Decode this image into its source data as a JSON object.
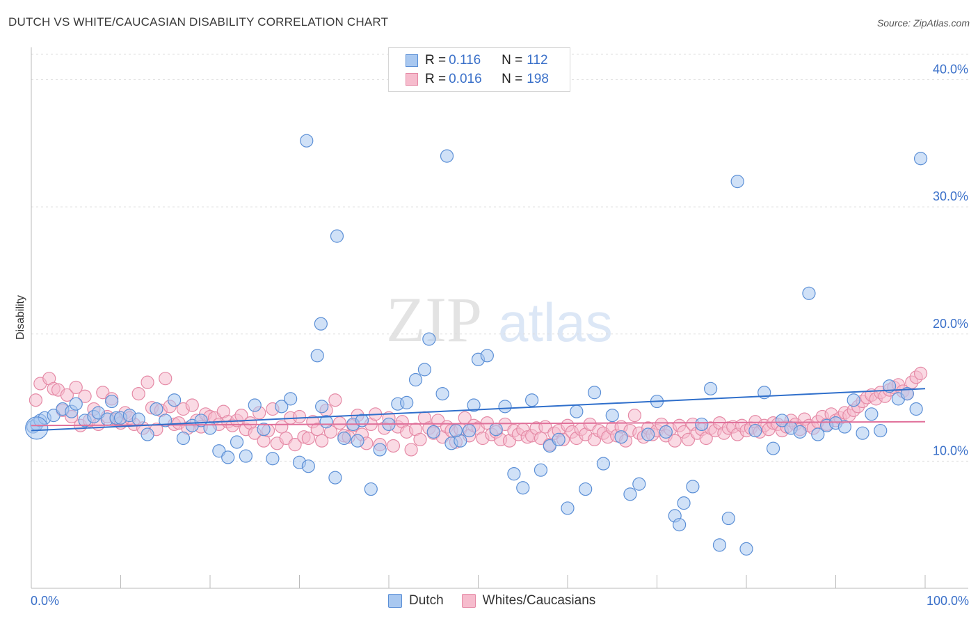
{
  "title": "DUTCH VS WHITE/CAUCASIAN DISABILITY CORRELATION CHART",
  "source": "Source: ZipAtlas.com",
  "watermark": {
    "zip": "ZIP",
    "atlas": "atlas"
  },
  "legend": {
    "rows": [
      {
        "r_label": "R = ",
        "r_value": "0.116",
        "n_label": "N = ",
        "n_value": "112"
      },
      {
        "r_label": "R = ",
        "r_value": "0.016",
        "n_label": "N = ",
        "n_value": "198"
      }
    ]
  },
  "colors": {
    "dutch_fill": "#a9c8f0",
    "dutch_stroke": "#5b8fd6",
    "dutch_line": "#2f6fcb",
    "white_fill": "#f6bccd",
    "white_stroke": "#e58aa6",
    "white_line": "#e0709a",
    "axis_label": "#3a70c9",
    "grid": "#dddddd"
  },
  "chart_data": {
    "type": "scatter",
    "title": "DUTCH VS WHITE/CAUCASIAN DISABILITY CORRELATION CHART",
    "xlabel": "",
    "ylabel": "Disability",
    "xlim": [
      0,
      100
    ],
    "ylim": [
      0,
      42
    ],
    "x_tick_labels": [
      "0.0%",
      "100.0%"
    ],
    "y_ticks": [
      10,
      20,
      30,
      40
    ],
    "y_tick_labels": [
      "10.0%",
      "20.0%",
      "30.0%",
      "40.0%"
    ],
    "series": [
      {
        "name": "Dutch",
        "trend": [
          [
            0,
            12.4
          ],
          [
            100,
            15.7
          ]
        ],
        "points": [
          [
            0.2,
            12.7
          ],
          [
            0.6,
            12.9
          ],
          [
            1,
            13.2
          ],
          [
            1.5,
            13.4
          ],
          [
            2.5,
            13.6
          ],
          [
            3.5,
            14.1
          ],
          [
            4.5,
            13.9
          ],
          [
            5,
            14.5
          ],
          [
            6,
            13.2
          ],
          [
            7,
            13.5
          ],
          [
            7.5,
            13.8
          ],
          [
            8.5,
            13.3
          ],
          [
            9,
            14.7
          ],
          [
            9.5,
            13.4
          ],
          [
            10,
            13.4
          ],
          [
            11,
            13.6
          ],
          [
            12,
            13.3
          ],
          [
            13,
            12.1
          ],
          [
            14,
            14.1
          ],
          [
            15,
            13.2
          ],
          [
            16,
            14.8
          ],
          [
            17,
            11.8
          ],
          [
            18,
            12.8
          ],
          [
            19,
            13.2
          ],
          [
            20,
            12.6
          ],
          [
            21,
            10.8
          ],
          [
            22,
            10.3
          ],
          [
            23,
            11.5
          ],
          [
            24,
            10.4
          ],
          [
            25,
            14.4
          ],
          [
            26,
            12.5
          ],
          [
            27,
            10.2
          ],
          [
            28,
            14.3
          ],
          [
            29,
            14.9
          ],
          [
            30,
            9.9
          ],
          [
            31,
            9.6
          ],
          [
            32,
            18.3
          ],
          [
            32.5,
            14.3
          ],
          [
            33,
            13.1
          ],
          [
            34,
            8.7
          ],
          [
            35,
            11.8
          ],
          [
            36,
            12.9
          ],
          [
            37,
            13.2
          ],
          [
            38,
            7.8
          ],
          [
            39,
            10.9
          ],
          [
            40,
            12.9
          ],
          [
            41,
            14.5
          ],
          [
            42,
            14.6
          ],
          [
            43,
            16.4
          ],
          [
            44,
            17.2
          ],
          [
            44.5,
            19.6
          ],
          [
            45,
            12.3
          ],
          [
            46,
            15.3
          ],
          [
            47,
            11.4
          ],
          [
            48,
            11.6
          ],
          [
            49,
            12.4
          ],
          [
            49.5,
            14.4
          ],
          [
            50,
            18.0
          ],
          [
            51,
            18.3
          ],
          [
            52,
            12.5
          ],
          [
            53,
            14.3
          ],
          [
            54,
            9.0
          ],
          [
            55,
            7.9
          ],
          [
            56,
            14.8
          ],
          [
            57,
            9.3
          ],
          [
            58,
            11.2
          ],
          [
            59,
            11.7
          ],
          [
            60,
            6.3
          ],
          [
            61,
            13.9
          ],
          [
            62,
            7.8
          ],
          [
            63,
            15.4
          ],
          [
            64,
            9.8
          ],
          [
            65,
            13.6
          ],
          [
            66,
            11.9
          ],
          [
            67,
            7.4
          ],
          [
            68,
            8.2
          ],
          [
            69,
            12.1
          ],
          [
            70,
            14.7
          ],
          [
            71,
            12.3
          ],
          [
            72,
            5.7
          ],
          [
            72.5,
            5.0
          ],
          [
            73,
            6.7
          ],
          [
            74,
            8.0
          ],
          [
            75,
            12.9
          ],
          [
            76,
            15.7
          ],
          [
            77,
            3.4
          ],
          [
            78,
            5.5
          ],
          [
            79,
            32.0
          ],
          [
            80,
            3.1
          ],
          [
            81,
            12.4
          ],
          [
            82,
            15.4
          ],
          [
            83,
            11.0
          ],
          [
            84,
            13.2
          ],
          [
            85,
            12.6
          ],
          [
            86,
            12.3
          ],
          [
            87,
            23.2
          ],
          [
            88,
            12.1
          ],
          [
            89,
            12.8
          ],
          [
            90,
            13.0
          ],
          [
            91,
            12.7
          ],
          [
            92,
            14.8
          ],
          [
            93,
            12.2
          ],
          [
            94,
            13.7
          ],
          [
            95,
            12.4
          ],
          [
            96,
            15.9
          ],
          [
            97,
            14.9
          ],
          [
            98,
            15.3
          ],
          [
            99,
            14.1
          ],
          [
            99.5,
            33.8
          ],
          [
            30.8,
            35.2
          ],
          [
            34.2,
            27.7
          ],
          [
            32.4,
            20.8
          ],
          [
            46.5,
            34.0
          ],
          [
            47.5,
            12.4
          ],
          [
            36.5,
            11.6
          ]
        ]
      },
      {
        "name": "Whites/Caucasians",
        "trend": [
          [
            0,
            12.8
          ],
          [
            100,
            13.1
          ]
        ],
        "points": [
          [
            0.5,
            14.8
          ],
          [
            1,
            16.1
          ],
          [
            2,
            16.5
          ],
          [
            2.5,
            15.7
          ],
          [
            3,
            15.6
          ],
          [
            3.5,
            14.0
          ],
          [
            4,
            15.2
          ],
          [
            4.5,
            13.5
          ],
          [
            5,
            15.8
          ],
          [
            5.5,
            12.8
          ],
          [
            6,
            15.1
          ],
          [
            6.5,
            13.2
          ],
          [
            7,
            14.1
          ],
          [
            7.5,
            12.9
          ],
          [
            8,
            15.4
          ],
          [
            8.5,
            13.5
          ],
          [
            9,
            14.9
          ],
          [
            9.5,
            13.3
          ],
          [
            10,
            13.0
          ],
          [
            10.5,
            13.8
          ],
          [
            11,
            13.4
          ],
          [
            11.5,
            12.9
          ],
          [
            12,
            15.3
          ],
          [
            12.5,
            12.6
          ],
          [
            13,
            16.2
          ],
          [
            13.5,
            14.2
          ],
          [
            14,
            12.5
          ],
          [
            14.5,
            14.0
          ],
          [
            15,
            16.5
          ],
          [
            15.5,
            14.3
          ],
          [
            16,
            12.9
          ],
          [
            16.5,
            13.0
          ],
          [
            17,
            14.1
          ],
          [
            17.5,
            12.6
          ],
          [
            18,
            14.4
          ],
          [
            18.5,
            13.2
          ],
          [
            19,
            12.7
          ],
          [
            19.5,
            13.7
          ],
          [
            20,
            13.5
          ],
          [
            20.5,
            13.4
          ],
          [
            21,
            12.9
          ],
          [
            21.5,
            13.9
          ],
          [
            22,
            13.1
          ],
          [
            22.5,
            12.8
          ],
          [
            23,
            13.2
          ],
          [
            23.5,
            13.6
          ],
          [
            24,
            12.5
          ],
          [
            24.5,
            13.0
          ],
          [
            25,
            12.2
          ],
          [
            25.5,
            13.8
          ],
          [
            26,
            11.6
          ],
          [
            26.5,
            12.4
          ],
          [
            27,
            14.1
          ],
          [
            27.5,
            11.4
          ],
          [
            28,
            12.7
          ],
          [
            28.5,
            11.8
          ],
          [
            29,
            13.4
          ],
          [
            29.5,
            11.3
          ],
          [
            30,
            13.5
          ],
          [
            30.5,
            11.9
          ],
          [
            31,
            11.8
          ],
          [
            31.5,
            13.1
          ],
          [
            32,
            12.5
          ],
          [
            32.5,
            11.6
          ],
          [
            33,
            14.0
          ],
          [
            33.5,
            12.3
          ],
          [
            34,
            14.8
          ],
          [
            34.5,
            13.0
          ],
          [
            35,
            12.0
          ],
          [
            35.5,
            11.9
          ],
          [
            36,
            12.8
          ],
          [
            36.5,
            13.6
          ],
          [
            37,
            12.1
          ],
          [
            37.5,
            11.4
          ],
          [
            38,
            12.9
          ],
          [
            38.5,
            13.7
          ],
          [
            39,
            11.3
          ],
          [
            39.5,
            12.6
          ],
          [
            40,
            13.4
          ],
          [
            40.5,
            11.2
          ],
          [
            41,
            12.7
          ],
          [
            41.5,
            13.1
          ],
          [
            42,
            12.3
          ],
          [
            42.5,
            10.9
          ],
          [
            43,
            12.5
          ],
          [
            43.5,
            11.7
          ],
          [
            44,
            13.4
          ],
          [
            44.5,
            12.6
          ],
          [
            45,
            12.2
          ],
          [
            45.5,
            13.2
          ],
          [
            46,
            11.9
          ],
          [
            46.5,
            12.7
          ],
          [
            47,
            12.4
          ],
          [
            47.5,
            11.5
          ],
          [
            48,
            12.5
          ],
          [
            48.5,
            13.4
          ],
          [
            49,
            12.0
          ],
          [
            49.5,
            12.8
          ],
          [
            50,
            12.6
          ],
          [
            50.5,
            11.8
          ],
          [
            51,
            13.0
          ],
          [
            51.5,
            12.1
          ],
          [
            52,
            12.3
          ],
          [
            52.5,
            11.7
          ],
          [
            53,
            12.9
          ],
          [
            53.5,
            11.6
          ],
          [
            54,
            12.4
          ],
          [
            54.5,
            12.1
          ],
          [
            55,
            12.5
          ],
          [
            55.5,
            11.9
          ],
          [
            56,
            12.0
          ],
          [
            56.5,
            12.6
          ],
          [
            57,
            11.8
          ],
          [
            57.5,
            12.7
          ],
          [
            58,
            11.3
          ],
          [
            58.5,
            12.2
          ],
          [
            59,
            12.4
          ],
          [
            59.5,
            11.7
          ],
          [
            60,
            12.8
          ],
          [
            60.5,
            12.3
          ],
          [
            61,
            11.8
          ],
          [
            61.5,
            12.5
          ],
          [
            62,
            12.1
          ],
          [
            62.5,
            12.9
          ],
          [
            63,
            11.7
          ],
          [
            63.5,
            12.4
          ],
          [
            64,
            12.2
          ],
          [
            64.5,
            11.9
          ],
          [
            65,
            12.6
          ],
          [
            65.5,
            12.0
          ],
          [
            66,
            12.7
          ],
          [
            66.5,
            11.6
          ],
          [
            67,
            12.4
          ],
          [
            67.5,
            13.6
          ],
          [
            68,
            12.2
          ],
          [
            68.5,
            11.9
          ],
          [
            69,
            12.6
          ],
          [
            69.5,
            12.1
          ],
          [
            70,
            12.4
          ],
          [
            70.5,
            12.9
          ],
          [
            71,
            12.0
          ],
          [
            71.5,
            12.5
          ],
          [
            72,
            11.6
          ],
          [
            72.5,
            12.8
          ],
          [
            73,
            12.3
          ],
          [
            73.5,
            11.7
          ],
          [
            74,
            12.9
          ],
          [
            74.5,
            12.2
          ],
          [
            75,
            12.5
          ],
          [
            75.5,
            11.8
          ],
          [
            76,
            12.6
          ],
          [
            76.5,
            12.4
          ],
          [
            77,
            13.0
          ],
          [
            77.5,
            12.2
          ],
          [
            78,
            12.6
          ],
          [
            78.5,
            12.7
          ],
          [
            79,
            12.1
          ],
          [
            79.5,
            12.8
          ],
          [
            80,
            12.4
          ],
          [
            80.5,
            12.6
          ],
          [
            81,
            13.1
          ],
          [
            81.5,
            12.3
          ],
          [
            82,
            12.8
          ],
          [
            82.5,
            12.5
          ],
          [
            83,
            13.0
          ],
          [
            83.5,
            12.9
          ],
          [
            84,
            12.4
          ],
          [
            84.5,
            12.7
          ],
          [
            85,
            13.2
          ],
          [
            85.5,
            12.9
          ],
          [
            86,
            12.5
          ],
          [
            86.5,
            13.3
          ],
          [
            87,
            12.8
          ],
          [
            87.5,
            12.6
          ],
          [
            88,
            13.1
          ],
          [
            88.5,
            13.5
          ],
          [
            89,
            12.9
          ],
          [
            89.5,
            13.7
          ],
          [
            90,
            13.2
          ],
          [
            90.5,
            13.4
          ],
          [
            91,
            13.8
          ],
          [
            91.5,
            13.6
          ],
          [
            92,
            14.0
          ],
          [
            92.5,
            14.3
          ],
          [
            93,
            14.7
          ],
          [
            93.5,
            15.0
          ],
          [
            94,
            15.2
          ],
          [
            94.5,
            14.9
          ],
          [
            95,
            15.4
          ],
          [
            95.5,
            15.1
          ],
          [
            96,
            15.6
          ],
          [
            96.5,
            15.8
          ],
          [
            97,
            16.0
          ],
          [
            97.5,
            15.5
          ],
          [
            98,
            15.3
          ],
          [
            98.5,
            16.2
          ],
          [
            99,
            16.6
          ],
          [
            99.5,
            16.9
          ]
        ]
      }
    ]
  }
}
